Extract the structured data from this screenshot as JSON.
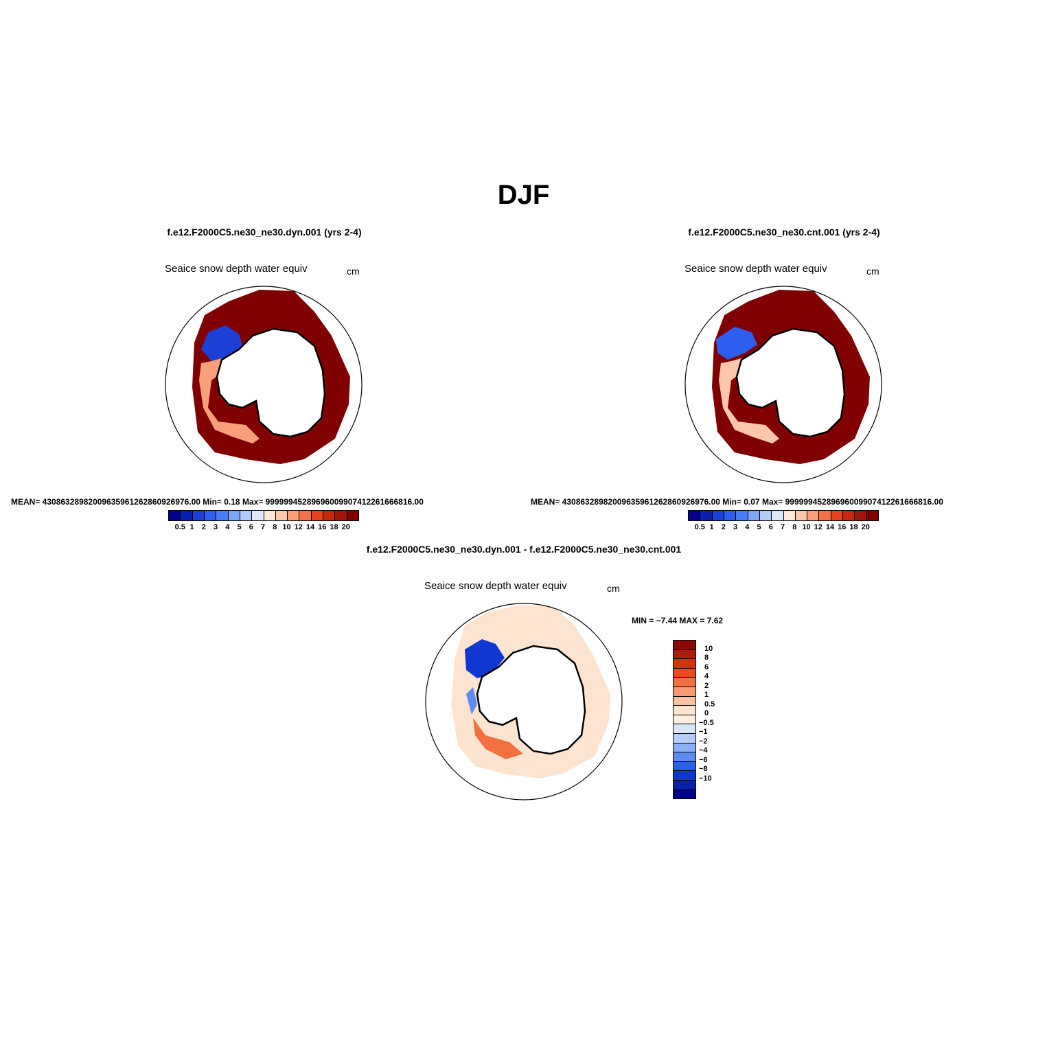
{
  "page": {
    "title": "DJF"
  },
  "panels": {
    "dyn": {
      "title": "f.e12.F2000C5.ne30_ne30.dyn.001 (yrs 2-4)",
      "variable": "Seaice snow depth water equiv",
      "units": "cm",
      "stats": "MEAN= 430863289820096359612628609269 76.00   Min=     0.18   Max=  999999452896960099074122616668 16.00"
    },
    "cnt": {
      "title": "f.e12.F2000C5.ne30_ne30.cnt.001 (yrs 2-4)",
      "variable": "Seaice snow depth water equiv",
      "units": "cm",
      "stats": "MEAN= 430863289820096359612628609269 76.00   Min=     0.07   Max=  999999452896960099074122616668 16.00"
    },
    "diff": {
      "title": "f.e12.F2000C5.ne30_ne30.dyn.001 - f.e12.F2000C5.ne30_ne30.cnt.001",
      "variable": "Seaice snow depth water equiv",
      "units": "cm",
      "minmax": "MIN =   −7.44  MAX =    7.62"
    }
  },
  "colorbar_abs": {
    "labels": [
      "0.5",
      "1",
      "2",
      "3",
      "4",
      "5",
      "6",
      "7",
      "8",
      "10",
      "12",
      "14",
      "16",
      "18",
      "20"
    ],
    "colors": [
      "#00008f",
      "#0a1fb0",
      "#1c3fd6",
      "#2d5ef0",
      "#4a7df5",
      "#7fa5f7",
      "#b3cbf9",
      "#dde9fb",
      "#fde9d9",
      "#fcc7aa",
      "#f9a07a",
      "#f3714a",
      "#e6431f",
      "#c8260d",
      "#a3150b",
      "#800000"
    ]
  },
  "colorbar_diff": {
    "labels": [
      "10",
      "8",
      "6",
      "4",
      "2",
      "1",
      "0.5",
      "0",
      "−0.5",
      "−1",
      "−2",
      "−4",
      "−6",
      "−8",
      "−10"
    ],
    "colors": [
      "#8a0a06",
      "#b01c0b",
      "#d3320f",
      "#ea4a1c",
      "#f27040",
      "#f79a72",
      "#fbc0a0",
      "#fde4d0",
      "#fdeedf",
      "#d8e6fa",
      "#b5cdf8",
      "#8ab0f5",
      "#5a8cf2",
      "#2b5ff0",
      "#1038d0",
      "#0a20a8",
      "#00008a"
    ]
  }
}
